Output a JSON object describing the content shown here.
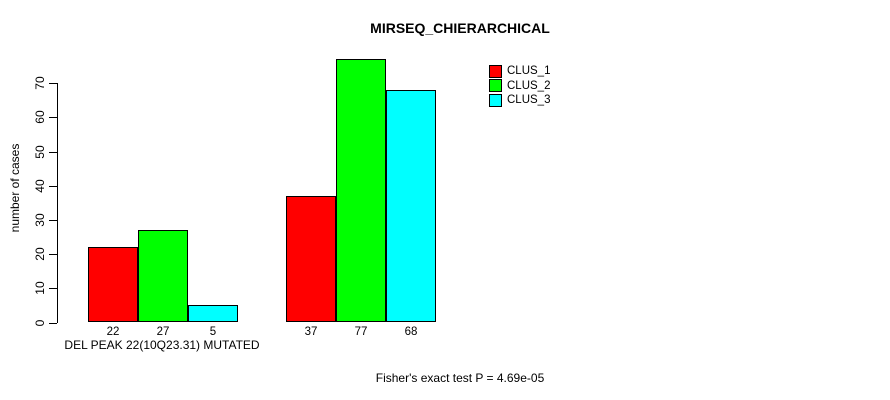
{
  "chart_data": {
    "type": "bar",
    "title": "MIRSEQ_CHIERARCHICAL",
    "ylabel": "number of cases",
    "xlabel": "",
    "ylim": [
      0,
      77
    ],
    "yticks": [
      0,
      10,
      20,
      30,
      40,
      50,
      60,
      70
    ],
    "categories": [
      "DEL PEAK 22(10Q23.31) MUTATED",
      ""
    ],
    "series": [
      {
        "name": "CLUS_1",
        "color": "#ff0000",
        "values": [
          22,
          37
        ]
      },
      {
        "name": "CLUS_2",
        "color": "#00ff00",
        "values": [
          27,
          77
        ]
      },
      {
        "name": "CLUS_3",
        "color": "#00ffff",
        "values": [
          5,
          68
        ]
      }
    ],
    "show_value_labels": true,
    "bar_border_color": "#000000",
    "grid": false,
    "legend_position": "topright",
    "annotation": "Fisher's exact test P = 4.69e-05"
  }
}
